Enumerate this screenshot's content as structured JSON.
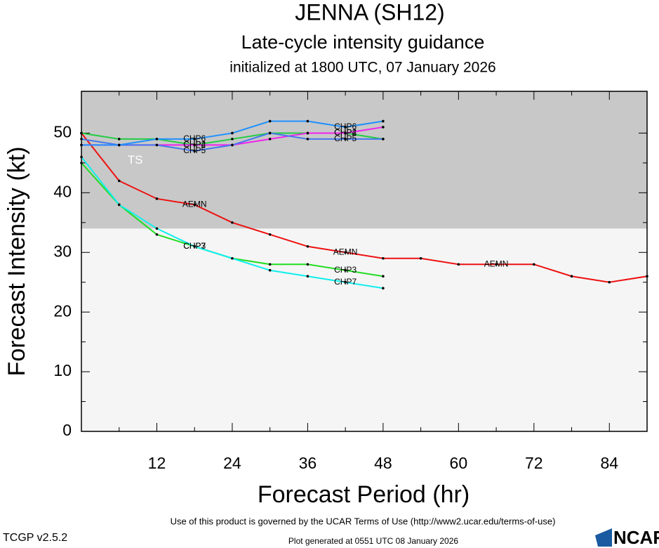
{
  "chart_data": {
    "type": "line",
    "title": "JENNA (SH12)",
    "subtitle": "Late-cycle intensity guidance",
    "initialized": "initialized at 1800 UTC, 07 January 2026",
    "x_label": "Forecast Period (hr)",
    "y_label": "Forecast Intensity (kt)",
    "x": [
      0,
      6,
      12,
      18,
      24,
      30,
      36,
      42,
      48,
      54,
      60,
      66,
      72,
      78,
      84,
      90
    ],
    "xlim": [
      0,
      90
    ],
    "xticks": [
      12,
      24,
      36,
      48,
      60,
      72,
      84
    ],
    "ylim": [
      0,
      57
    ],
    "yticks": [
      0,
      10,
      20,
      30,
      40,
      50
    ],
    "band": {
      "label": "TS",
      "from": 34,
      "color": "#c8c8c8"
    },
    "background": "#f5f5f5",
    "series": [
      {
        "name": "AEMN",
        "color": "#ee1111",
        "values": [
          50,
          42,
          39,
          38,
          35,
          33,
          31,
          30,
          29,
          29,
          28,
          28,
          28,
          26,
          25,
          26
        ]
      },
      {
        "name": "CHP3",
        "color": "#22dd22",
        "values": [
          45,
          38,
          33,
          31,
          29,
          28,
          28,
          27,
          26,
          null,
          null,
          null,
          null,
          null,
          null,
          null
        ]
      },
      {
        "name": "CHP7",
        "color": "#11eeee",
        "values": [
          46,
          38,
          34,
          31,
          29,
          27,
          26,
          25,
          24,
          null,
          null,
          null,
          null,
          null,
          null,
          null
        ]
      },
      {
        "name": "CHP2",
        "color": "#22cc44",
        "values": [
          50,
          49,
          49,
          48,
          49,
          50,
          50,
          50,
          49,
          null,
          null,
          null,
          null,
          null,
          null,
          null
        ]
      },
      {
        "name": "CHP4",
        "color": "#ee22ee",
        "values": [
          48,
          48,
          48,
          48,
          48,
          49,
          50,
          50,
          51,
          null,
          null,
          null,
          null,
          null,
          null,
          null
        ]
      },
      {
        "name": "CHP5",
        "color": "#4477ee",
        "values": [
          49,
          48,
          48,
          47,
          48,
          50,
          49,
          49,
          49,
          null,
          null,
          null,
          null,
          null,
          null,
          null
        ]
      },
      {
        "name": "CHP6",
        "color": "#1e90ff",
        "values": [
          48,
          48,
          49,
          49,
          50,
          52,
          52,
          51,
          52,
          null,
          null,
          null,
          null,
          null,
          null,
          null
        ]
      }
    ],
    "terms": "Use of this product is governed by the UCAR Terms of Use (http://www2.ucar.edu/terms-of-use)",
    "version": "TCGP v2.5.2",
    "generated": "Plot generated at 0551 UTC   08 January 2026",
    "logo": "NCAR"
  }
}
